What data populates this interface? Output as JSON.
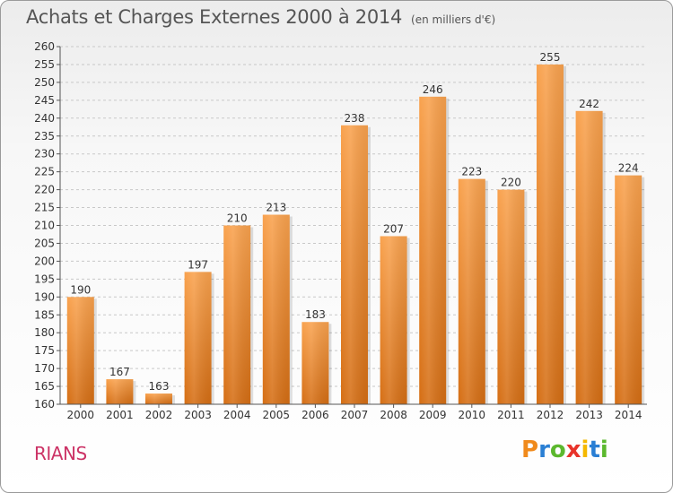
{
  "title": "Achats et Charges Externes 2000 à 2014",
  "unit_note": "(en milliers d'€)",
  "commune": "RIANS",
  "logo": {
    "letters": [
      "P",
      "r",
      "o",
      "x",
      "i",
      "t",
      "i"
    ],
    "colors": [
      "#f08a1c",
      "#2a7fd4",
      "#5cb82e",
      "#e8332a",
      "#f5b800",
      "#2a7fd4",
      "#5cb82e"
    ]
  },
  "colors": {
    "bar_top": "#f9a24e",
    "bar_bottom": "#d56e14",
    "grid": "#c8c8c8",
    "axis": "#555555"
  },
  "chart_data": {
    "type": "bar",
    "categories": [
      "2000",
      "2001",
      "2002",
      "2003",
      "2004",
      "2005",
      "2006",
      "2007",
      "2008",
      "2009",
      "2010",
      "2011",
      "2012",
      "2013",
      "2014"
    ],
    "values": [
      190,
      167,
      163,
      197,
      210,
      213,
      183,
      238,
      207,
      246,
      223,
      220,
      255,
      242,
      224
    ],
    "ylim": [
      160,
      260
    ],
    "ytick_step": 5,
    "grid": true,
    "data_labels": true
  }
}
